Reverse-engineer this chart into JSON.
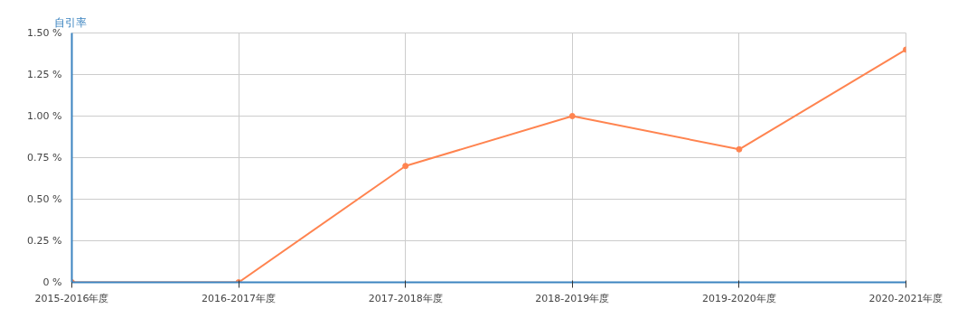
{
  "chart_data": {
    "type": "line",
    "ylabel": "自引率",
    "categories": [
      "2015-2016年度",
      "2016-2017年度",
      "2017-2018年度",
      "2018-2019年度",
      "2019-2020年度",
      "2020-2021年度"
    ],
    "series": [
      {
        "color": "#ff8450",
        "values": [
          0,
          0,
          0.7,
          1.0,
          0.8,
          1.4
        ]
      }
    ],
    "ylim": [
      0,
      1.5
    ],
    "yticks": [
      {
        "value": 0,
        "label": "0 %"
      },
      {
        "value": 0.25,
        "label": "0.25 %"
      },
      {
        "value": 0.5,
        "label": "0.50 %"
      },
      {
        "value": 0.75,
        "label": "0.75 %"
      },
      {
        "value": 1.0,
        "label": "1.00 %"
      },
      {
        "value": 1.25,
        "label": "1.25 %"
      },
      {
        "value": 1.5,
        "label": "1.50 %"
      }
    ],
    "grid": true,
    "marker": "circle",
    "line_style": "solid"
  }
}
